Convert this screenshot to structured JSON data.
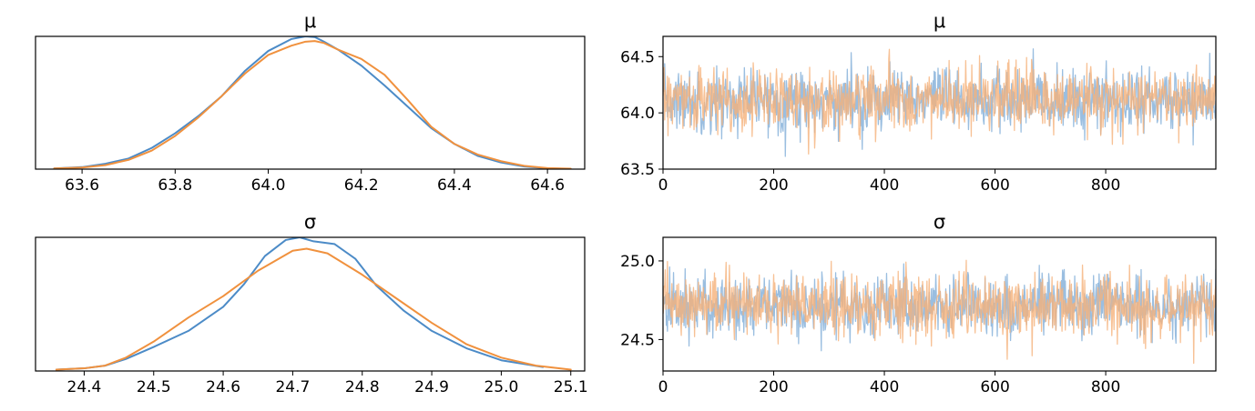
{
  "colors": {
    "chain_0": "#4c8bc7",
    "chain_1": "#f0913e",
    "chain_0_trace": "#8fb7dd",
    "chain_1_trace": "#f5b27a"
  },
  "chart_data": [
    {
      "type": "line",
      "panel": "density",
      "title": "μ",
      "xlim": [
        63.5,
        64.68
      ],
      "ylim": [
        0,
        1
      ],
      "y_ticks_shown": false,
      "x_ticks": [
        63.6,
        63.8,
        64.0,
        64.2,
        64.4,
        64.6
      ],
      "x_tick_labels": [
        "63.6",
        "63.8",
        "64.0",
        "64.2",
        "64.4",
        "64.6"
      ],
      "series": [
        {
          "x": [
            63.54,
            63.6,
            63.65,
            63.7,
            63.75,
            63.8,
            63.85,
            63.9,
            63.95,
            64.0,
            64.05,
            64.08,
            64.1,
            64.12,
            64.15,
            64.2,
            64.25,
            64.3,
            64.35,
            64.4,
            64.45,
            64.5,
            64.55,
            64.6,
            64.65
          ],
          "y": [
            0.005,
            0.015,
            0.04,
            0.08,
            0.16,
            0.27,
            0.4,
            0.55,
            0.74,
            0.89,
            0.98,
            1.0,
            0.995,
            0.96,
            0.9,
            0.78,
            0.63,
            0.47,
            0.31,
            0.19,
            0.1,
            0.05,
            0.02,
            0.006,
            0.002
          ]
        },
        {
          "x": [
            63.54,
            63.6,
            63.65,
            63.7,
            63.75,
            63.8,
            63.85,
            63.9,
            63.95,
            64.0,
            64.05,
            64.08,
            64.1,
            64.12,
            64.15,
            64.2,
            64.25,
            64.3,
            64.35,
            64.4,
            64.45,
            64.5,
            64.55,
            64.6,
            64.65
          ],
          "y": [
            0.005,
            0.012,
            0.03,
            0.07,
            0.14,
            0.25,
            0.39,
            0.55,
            0.72,
            0.86,
            0.93,
            0.96,
            0.965,
            0.95,
            0.9,
            0.83,
            0.71,
            0.52,
            0.32,
            0.19,
            0.11,
            0.06,
            0.025,
            0.008,
            0.003
          ]
        }
      ]
    },
    {
      "type": "line",
      "panel": "trace",
      "title": "μ",
      "xlim": [
        0,
        999
      ],
      "ylim": [
        63.5,
        64.68
      ],
      "x_ticks": [
        0,
        200,
        400,
        600,
        800
      ],
      "x_tick_labels": [
        "0",
        "200",
        "400",
        "600",
        "800"
      ],
      "y_ticks": [
        63.5,
        64.0,
        64.5
      ],
      "y_tick_labels": [
        "63.5",
        "64.0",
        "64.5"
      ],
      "draws": 1000,
      "center": 64.11,
      "spread": 0.14
    },
    {
      "type": "line",
      "panel": "density",
      "title": "σ",
      "xlim": [
        24.33,
        25.12
      ],
      "ylim": [
        0,
        1
      ],
      "y_ticks_shown": false,
      "x_ticks": [
        24.4,
        24.5,
        24.6,
        24.7,
        24.8,
        24.9,
        25.0,
        25.1
      ],
      "x_tick_labels": [
        "24.4",
        "24.5",
        "24.6",
        "24.7",
        "24.8",
        "24.9",
        "25.0",
        "25.1"
      ],
      "series": [
        {
          "x": [
            24.36,
            24.4,
            24.43,
            24.46,
            24.5,
            24.55,
            24.6,
            24.63,
            24.66,
            24.69,
            24.71,
            24.73,
            24.76,
            24.79,
            24.82,
            24.86,
            24.9,
            24.95,
            25.0,
            25.06
          ],
          "y": [
            0.01,
            0.02,
            0.04,
            0.09,
            0.18,
            0.3,
            0.48,
            0.65,
            0.86,
            0.98,
            1.0,
            0.97,
            0.95,
            0.84,
            0.64,
            0.45,
            0.3,
            0.17,
            0.08,
            0.03
          ]
        },
        {
          "x": [
            24.36,
            24.4,
            24.43,
            24.46,
            24.5,
            24.55,
            24.6,
            24.65,
            24.7,
            24.72,
            24.75,
            24.8,
            24.85,
            24.9,
            24.95,
            25.0,
            25.05,
            25.1
          ],
          "y": [
            0.01,
            0.02,
            0.04,
            0.1,
            0.22,
            0.4,
            0.56,
            0.75,
            0.9,
            0.915,
            0.88,
            0.72,
            0.54,
            0.36,
            0.2,
            0.1,
            0.04,
            0.01
          ]
        }
      ]
    },
    {
      "type": "line",
      "panel": "trace",
      "title": "σ",
      "xlim": [
        0,
        999
      ],
      "ylim": [
        24.3,
        25.15
      ],
      "x_ticks": [
        0,
        200,
        400,
        600,
        800
      ],
      "x_tick_labels": [
        "0",
        "200",
        "400",
        "600",
        "800"
      ],
      "y_ticks": [
        24.5,
        25.0
      ],
      "y_tick_labels": [
        "24.5",
        "25.0"
      ],
      "draws": 1000,
      "center": 24.715,
      "spread": 0.1
    }
  ]
}
